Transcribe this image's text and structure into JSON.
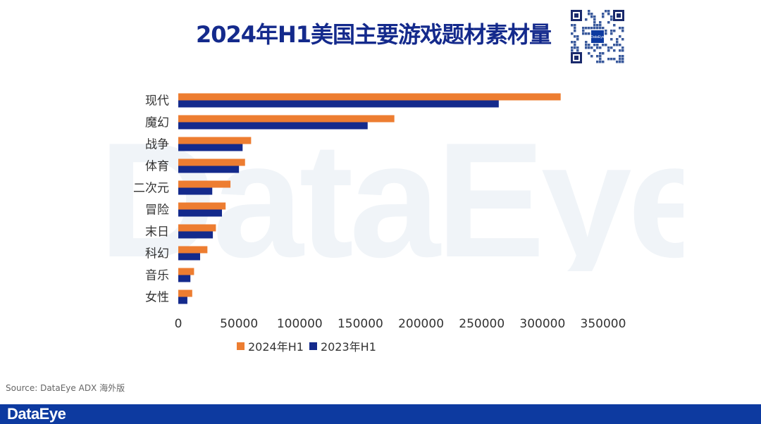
{
  "title": "2024年H1美国主要游戏题材素材量",
  "watermark": "DataEye",
  "source": "Source: DataEye ADX 海外版",
  "footer_logo": "DataEye",
  "qr_label": "DataEye",
  "colors": {
    "series_2024": "#ed7d31",
    "series_2023": "#142a8c",
    "footer": "#0d3aa0",
    "title": "#142a8c"
  },
  "chart_data": {
    "type": "bar",
    "orientation": "horizontal",
    "title": "2024年H1美国主要游戏题材素材量",
    "categories": [
      "现代",
      "魔幻",
      "战争",
      "体育",
      "二次元",
      "冒险",
      "末日",
      "科幻",
      "音乐",
      "女性"
    ],
    "series": [
      {
        "name": "2024年H1",
        "values": [
          315000,
          178000,
          60000,
          55000,
          43000,
          39000,
          31000,
          24000,
          13000,
          11500
        ]
      },
      {
        "name": "2023年H1",
        "values": [
          264000,
          156000,
          53000,
          50000,
          28000,
          36000,
          28500,
          18000,
          10000,
          7500
        ]
      }
    ],
    "xlim": [
      0,
      350000
    ],
    "xticks": [
      "0",
      "50000",
      "100000",
      "150000",
      "200000",
      "250000",
      "300000",
      "350000"
    ],
    "grid": false,
    "legend_position": "bottom"
  }
}
